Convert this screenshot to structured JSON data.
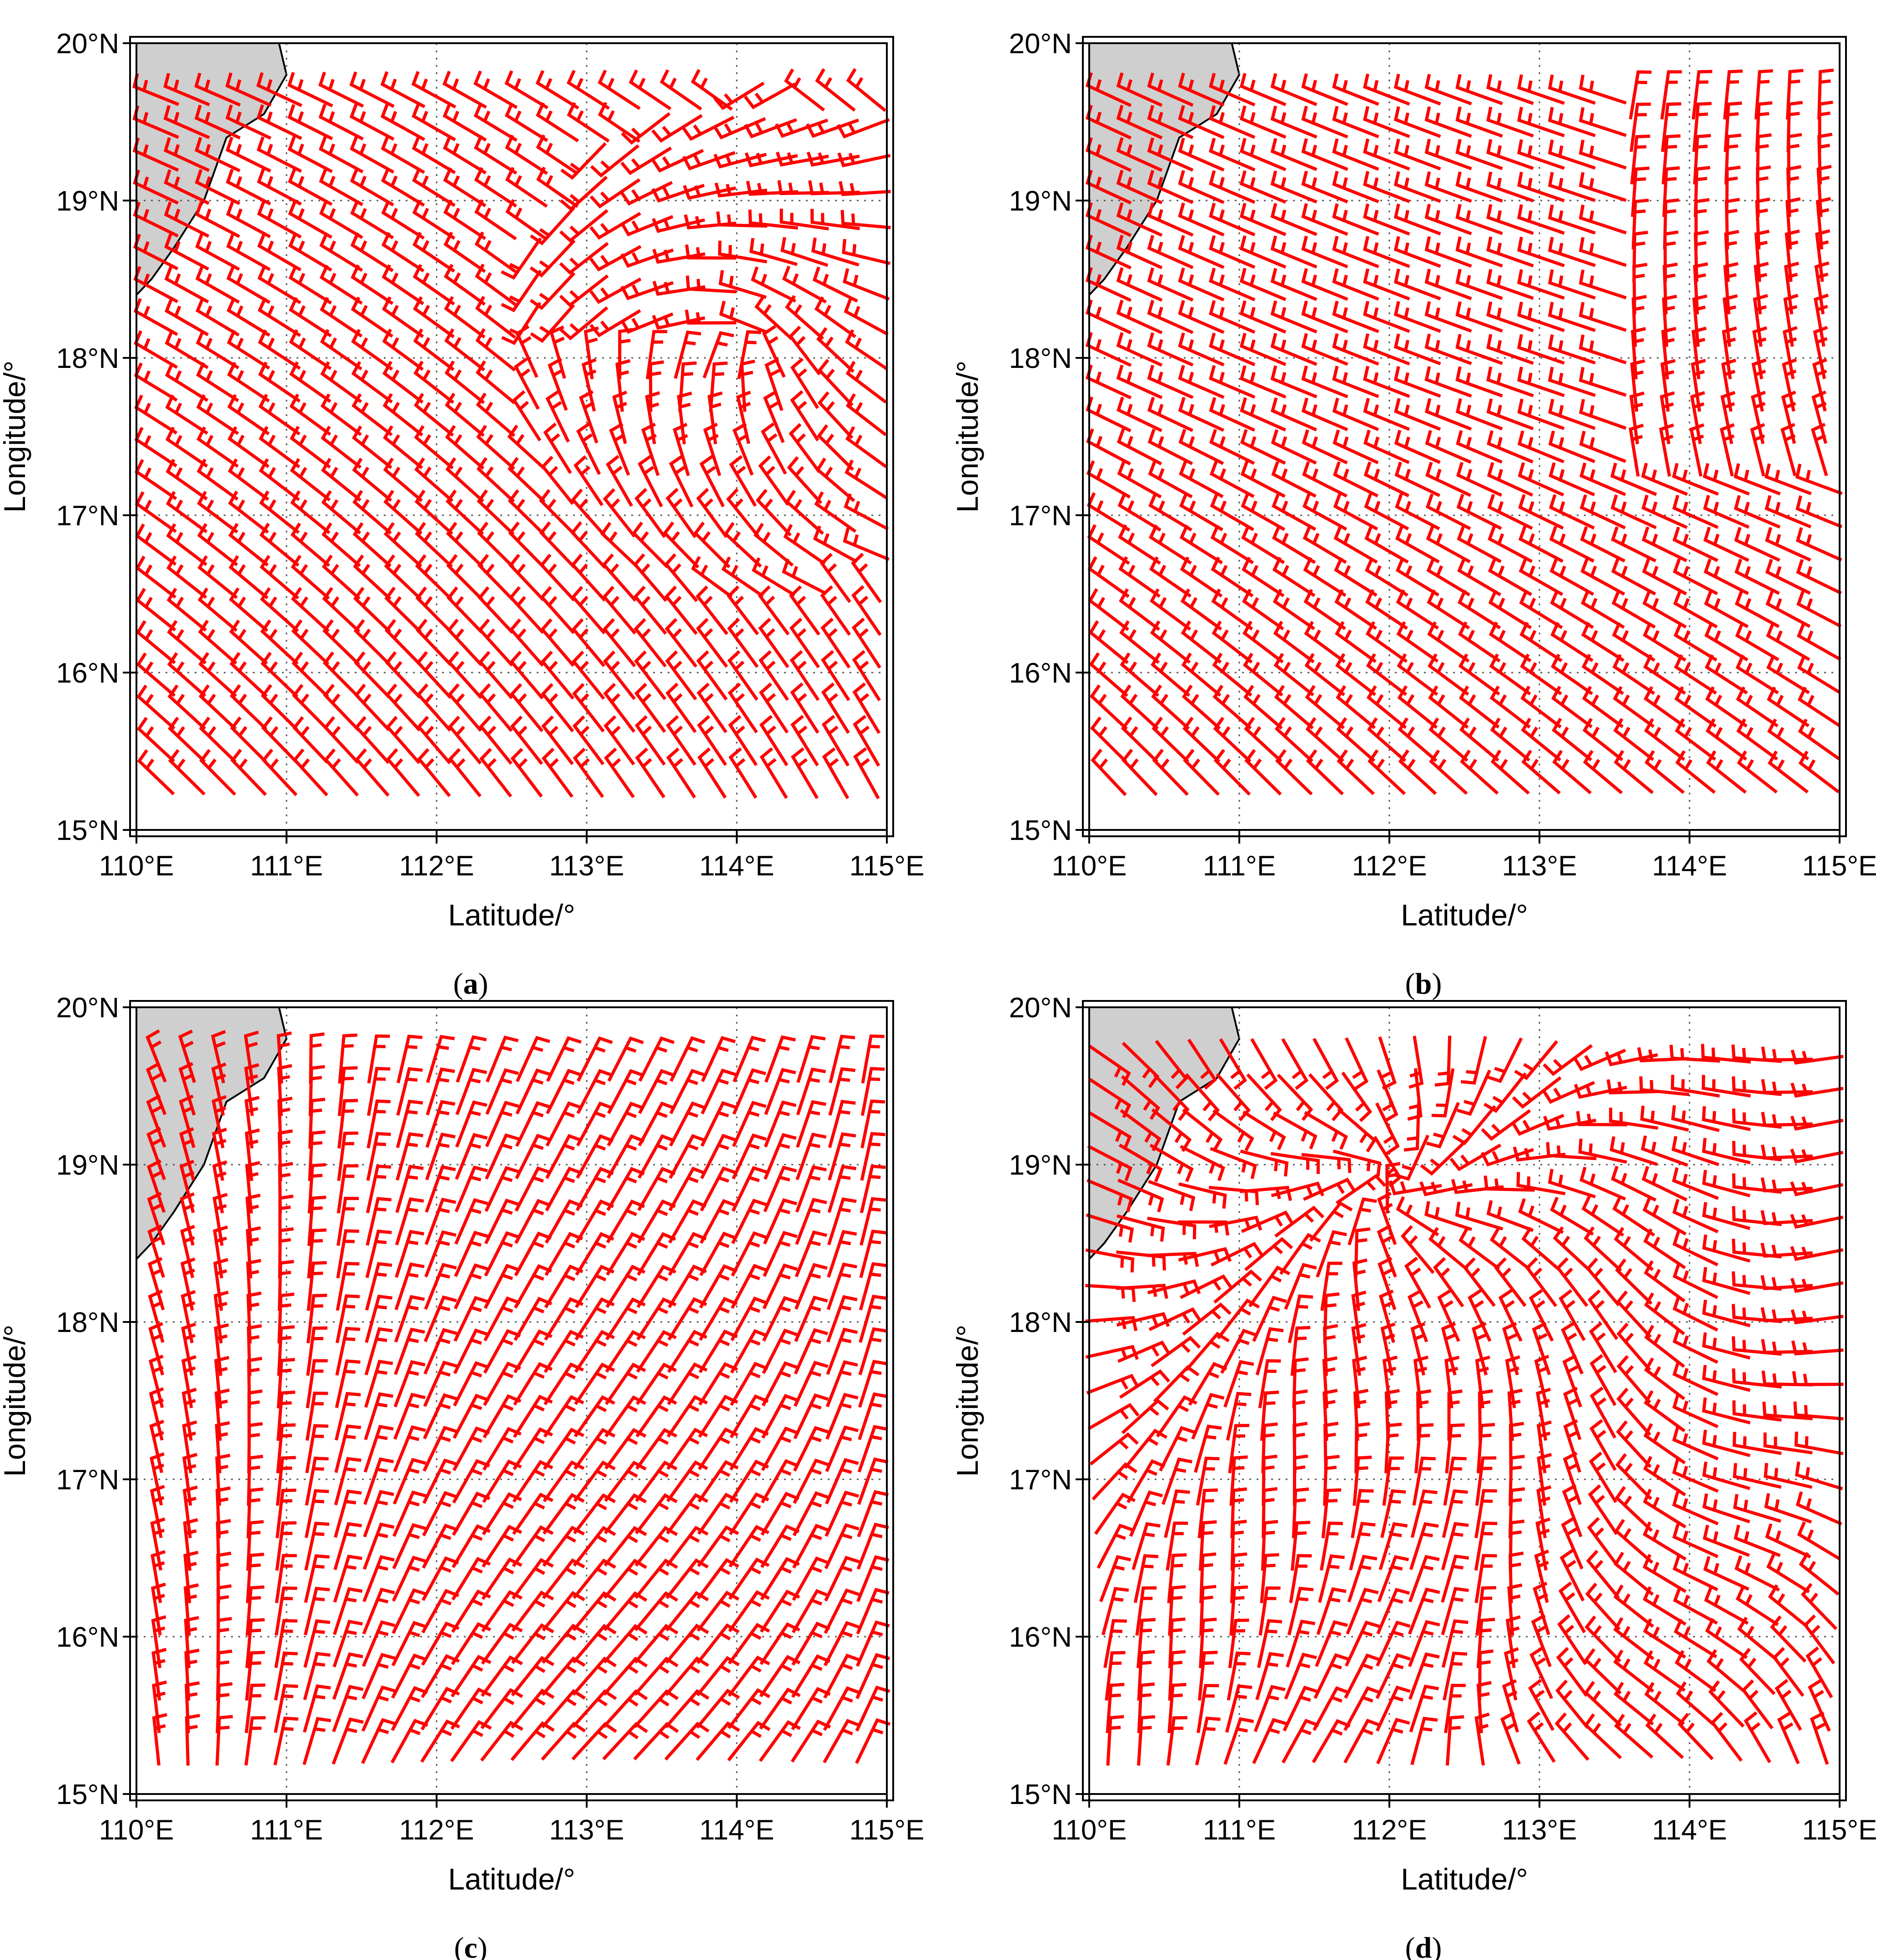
{
  "panels": [
    {
      "id": "a",
      "caption_open": "(",
      "caption_letter": "a",
      "caption_close": ")",
      "xlabel": "Latitude/°",
      "ylabel": "Longitude/°",
      "x_ticks": [
        "110°E",
        "111°E",
        "112°E",
        "113°E",
        "114°E",
        "115°E"
      ],
      "y_ticks": [
        "15°N",
        "16°N",
        "17°N",
        "18°N",
        "19°N",
        "20°N"
      ],
      "field": "ne_swirl"
    },
    {
      "id": "b",
      "caption_open": "(",
      "caption_letter": "b",
      "caption_close": ")",
      "xlabel": "Latitude/°",
      "ylabel": "Longitude/°",
      "x_ticks": [
        "110°E",
        "111°E",
        "112°E",
        "113°E",
        "114°E",
        "115°E"
      ],
      "y_ticks": [
        "15°N",
        "16°N",
        "17°N",
        "18°N",
        "19°N",
        "20°N"
      ],
      "field": "south_turn"
    },
    {
      "id": "c",
      "caption_open": "(",
      "caption_letter": "c",
      "caption_close": ")",
      "xlabel": "Latitude/°",
      "ylabel": "Longitude/°",
      "x_ticks": [
        "110°E",
        "111°E",
        "112°E",
        "113°E",
        "114°E",
        "115°E"
      ],
      "y_ticks": [
        "15°N",
        "16°N",
        "17°N",
        "18°N",
        "19°N",
        "20°N"
      ],
      "field": "arc_wave"
    },
    {
      "id": "d",
      "caption_open": "(",
      "caption_letter": "d",
      "caption_close": ")",
      "xlabel": "Latitude/°",
      "ylabel": "Longitude/°",
      "x_ticks": [
        "110°E",
        "111°E",
        "112°E",
        "113°E",
        "114°E",
        "115°E"
      ],
      "y_ticks": [
        "15°N",
        "16°N",
        "17°N",
        "18°N",
        "19°N",
        "20°N"
      ],
      "field": "convergence"
    }
  ],
  "map_extent": {
    "lon": [
      110,
      115
    ],
    "lat": [
      15,
      20
    ]
  },
  "colors": {
    "barb": "#ff0000",
    "land": "#cfcfcf",
    "frame": "#000000",
    "grid": "#555555"
  },
  "symbol": "wind-barb"
}
